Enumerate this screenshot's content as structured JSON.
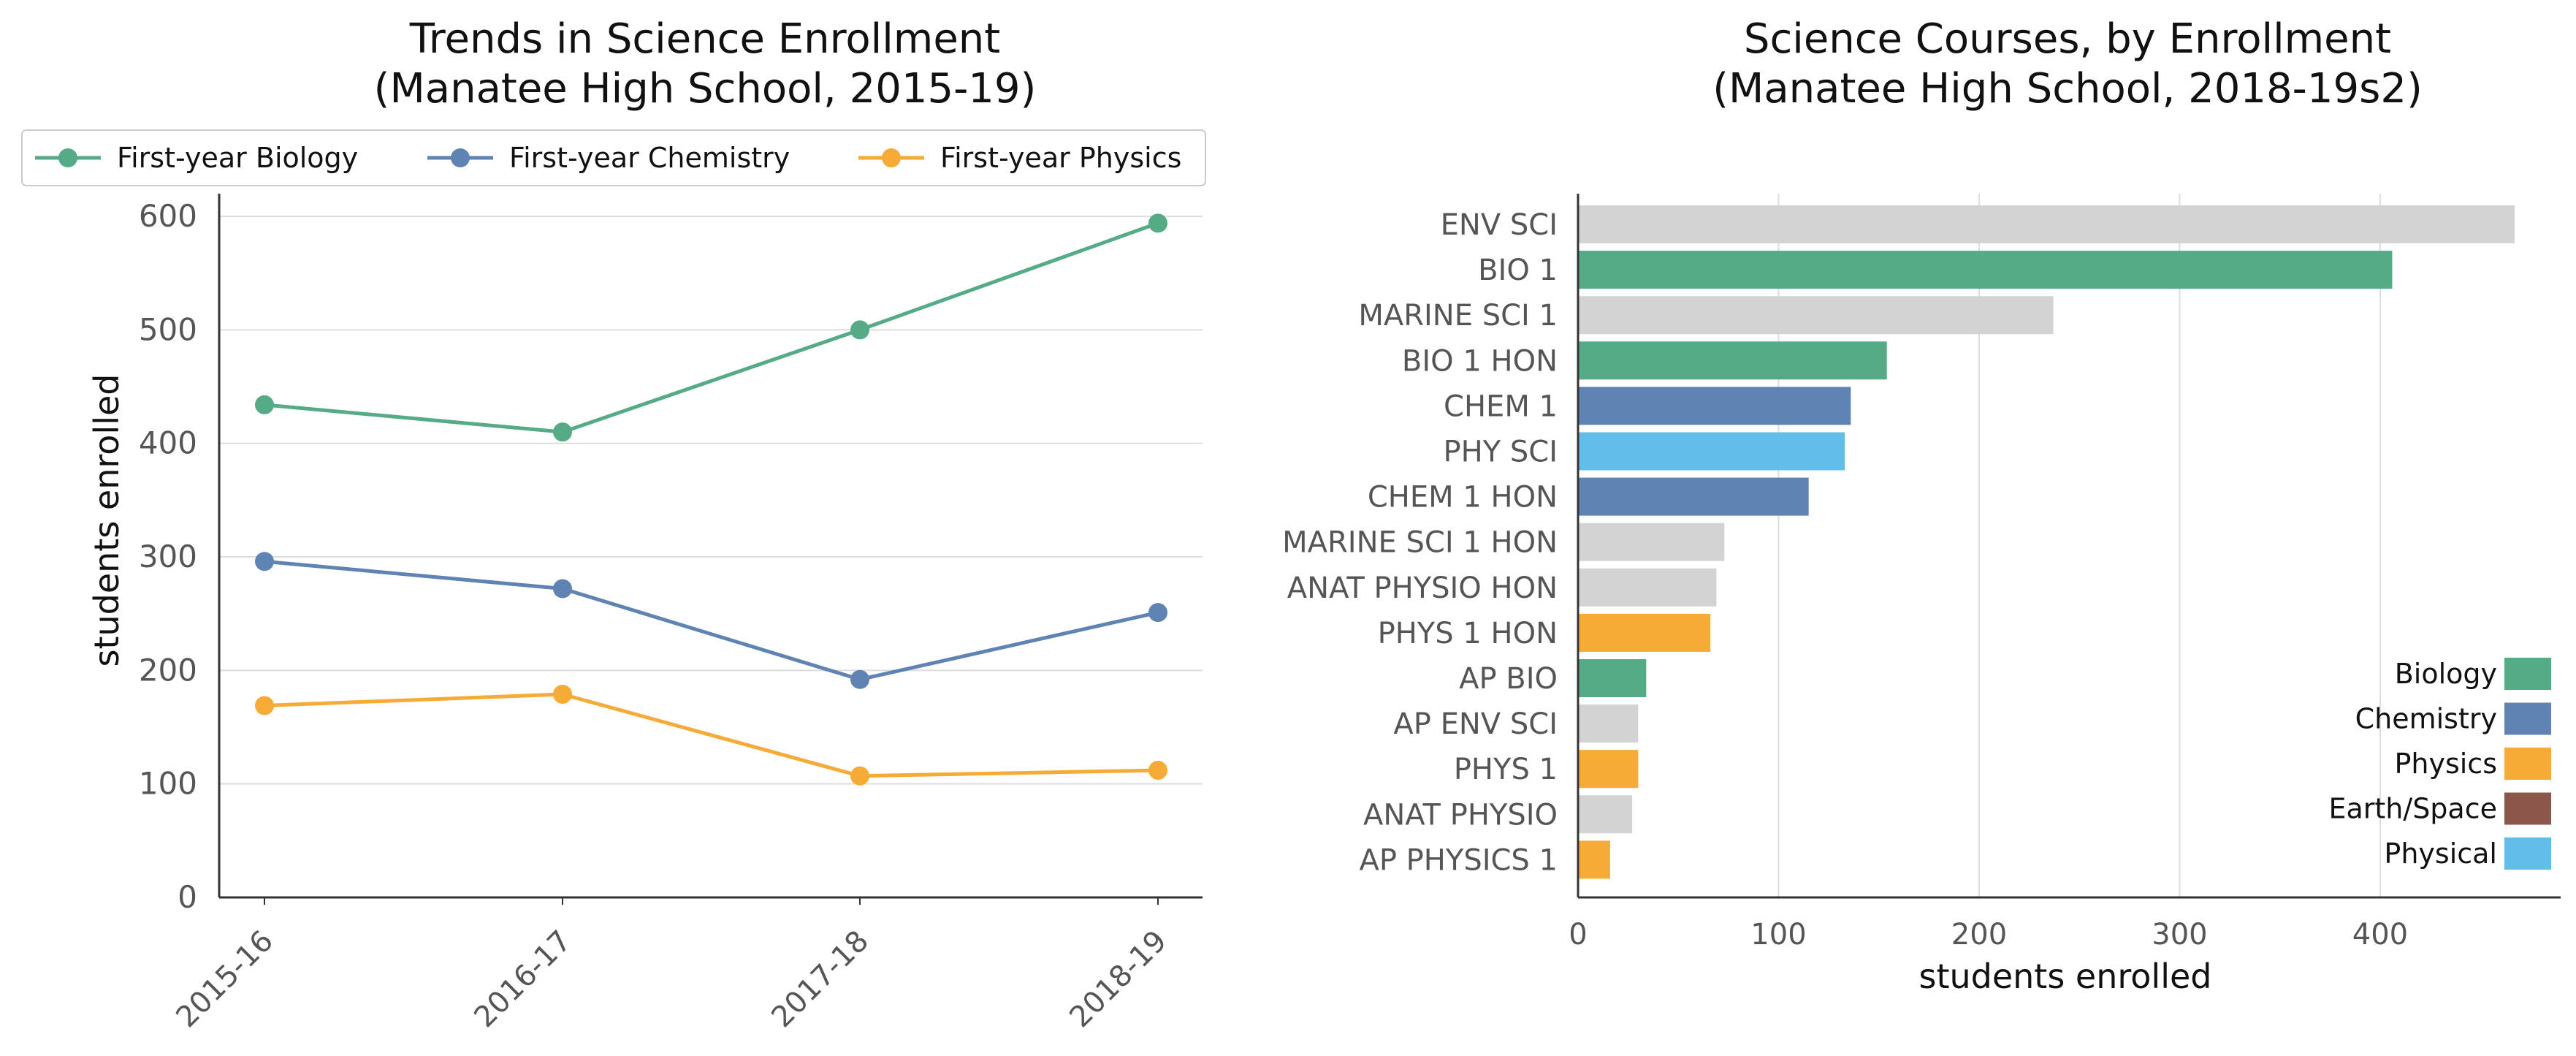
{
  "chart_data": [
    {
      "type": "line",
      "title_line1": "Trends in Science Enrollment",
      "title_line2": "(Manatee High School, 2015-19)",
      "ylabel": "students enrolled",
      "xlabel": "",
      "ylim": [
        0,
        620
      ],
      "yticks": [
        0,
        100,
        200,
        300,
        400,
        500,
        600
      ],
      "grid": "horizontal",
      "legend_position": "top",
      "categories": [
        "2015-16",
        "2016-17",
        "2017-18",
        "2018-19"
      ],
      "series": [
        {
          "name": "First-year Biology",
          "color": "#55ab85",
          "values": [
            434,
            410,
            500,
            594
          ]
        },
        {
          "name": "First-year Chemistry",
          "color": "#5f84b4",
          "values": [
            296,
            272,
            192,
            251
          ]
        },
        {
          "name": "First-year Physics",
          "color": "#f6ab37",
          "values": [
            169,
            179,
            107,
            112
          ]
        }
      ]
    },
    {
      "type": "bar",
      "orientation": "horizontal",
      "title_line1": "Science Courses, by Enrollment",
      "title_line2": "(Manatee High School, 2018-19s2)",
      "xlabel": "students enrolled",
      "ylabel": "",
      "xlim": [
        0,
        490
      ],
      "xticks": [
        0,
        100,
        200,
        300,
        400
      ],
      "grid": "vertical",
      "legend_position": "lower-right",
      "categories": [
        "ENV SCI",
        "BIO 1",
        "MARINE SCI 1",
        "BIO 1 HON",
        "CHEM 1",
        "PHY SCI",
        "CHEM 1 HON",
        "MARINE SCI 1 HON",
        "ANAT PHYSIO HON",
        "PHYS 1 HON",
        "AP BIO",
        "AP ENV SCI",
        "PHYS 1",
        "ANAT PHYSIO",
        "AP PHYSICS 1"
      ],
      "values": [
        467,
        406,
        237,
        154,
        136,
        133,
        115,
        73,
        69,
        66,
        34,
        30,
        30,
        27,
        16
      ],
      "groups": [
        "Other",
        "Biology",
        "Other",
        "Biology",
        "Chemistry",
        "Physical",
        "Chemistry",
        "Other",
        "Other",
        "Physics",
        "Biology",
        "Other",
        "Physics",
        "Other",
        "Physics"
      ],
      "group_colors": {
        "Biology": "#55ab85",
        "Chemistry": "#5f84b4",
        "Physics": "#f6ab37",
        "Earth/Space": "#8c564b",
        "Physical": "#62bdeb",
        "Other": "#d3d3d3"
      },
      "legend": [
        "Biology",
        "Chemistry",
        "Physics",
        "Earth/Space",
        "Physical"
      ]
    }
  ]
}
